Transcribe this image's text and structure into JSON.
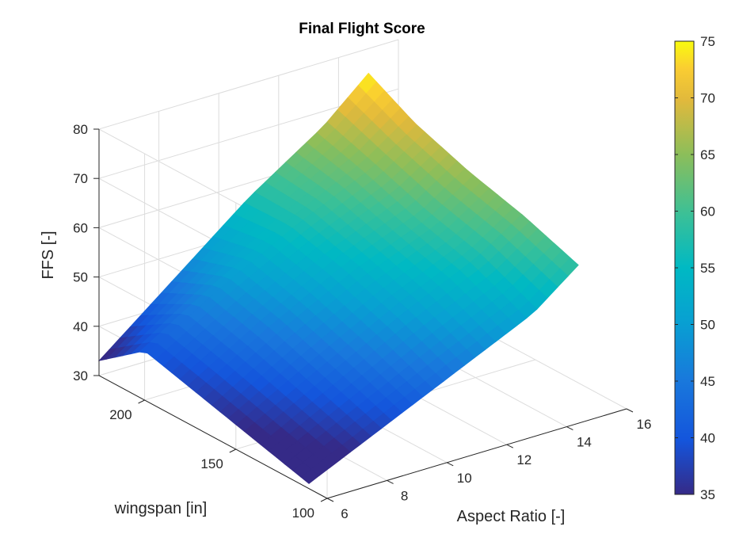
{
  "chart_data": {
    "type": "surface",
    "title": "Final Flight Score",
    "xlabel": "Aspect Ratio [-]",
    "ylabel": "wingspan [in]",
    "zlabel": "FFS [-]",
    "x_ticks": [
      6,
      8,
      10,
      12,
      14,
      16
    ],
    "y_ticks": [
      100,
      150,
      200
    ],
    "z_ticks": [
      30,
      40,
      50,
      60,
      70,
      80
    ],
    "xlim": [
      6,
      16
    ],
    "ylim": [
      100,
      225
    ],
    "zlim": [
      30,
      80
    ],
    "grid": true,
    "colormap": "parula",
    "colorbar": {
      "ticks": [
        35,
        40,
        45,
        50,
        55,
        60,
        65,
        70,
        75
      ],
      "clim": [
        35,
        75
      ]
    },
    "surface": {
      "x": [
        6,
        8.5,
        11,
        13.5,
        15
      ],
      "y": [
        110,
        140,
        170,
        200,
        225
      ],
      "z": [
        [
          31,
          38,
          45,
          52,
          59
        ],
        [
          34,
          42,
          50,
          57,
          63
        ],
        [
          37,
          46,
          54,
          60,
          66
        ],
        [
          40,
          49,
          57,
          64,
          70
        ],
        [
          33,
          45,
          57,
          67,
          75
        ]
      ]
    }
  }
}
